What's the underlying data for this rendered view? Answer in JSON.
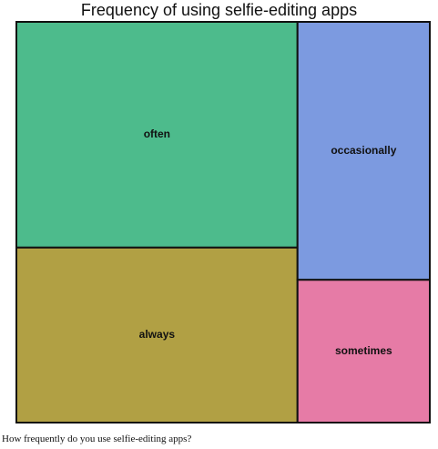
{
  "chart_data": {
    "type": "treemap",
    "title": "Frequency of using selfie-editing apps",
    "categories": [
      "often",
      "always",
      "occasionally",
      "sometimes"
    ],
    "values": [
      38.3,
      29.7,
      20.6,
      11.4
    ],
    "colors": [
      "#4dbb8c",
      "#b1a044",
      "#7c9ae0",
      "#e67ba6"
    ]
  },
  "caption": "How frequently do you use selfie-editing apps?"
}
